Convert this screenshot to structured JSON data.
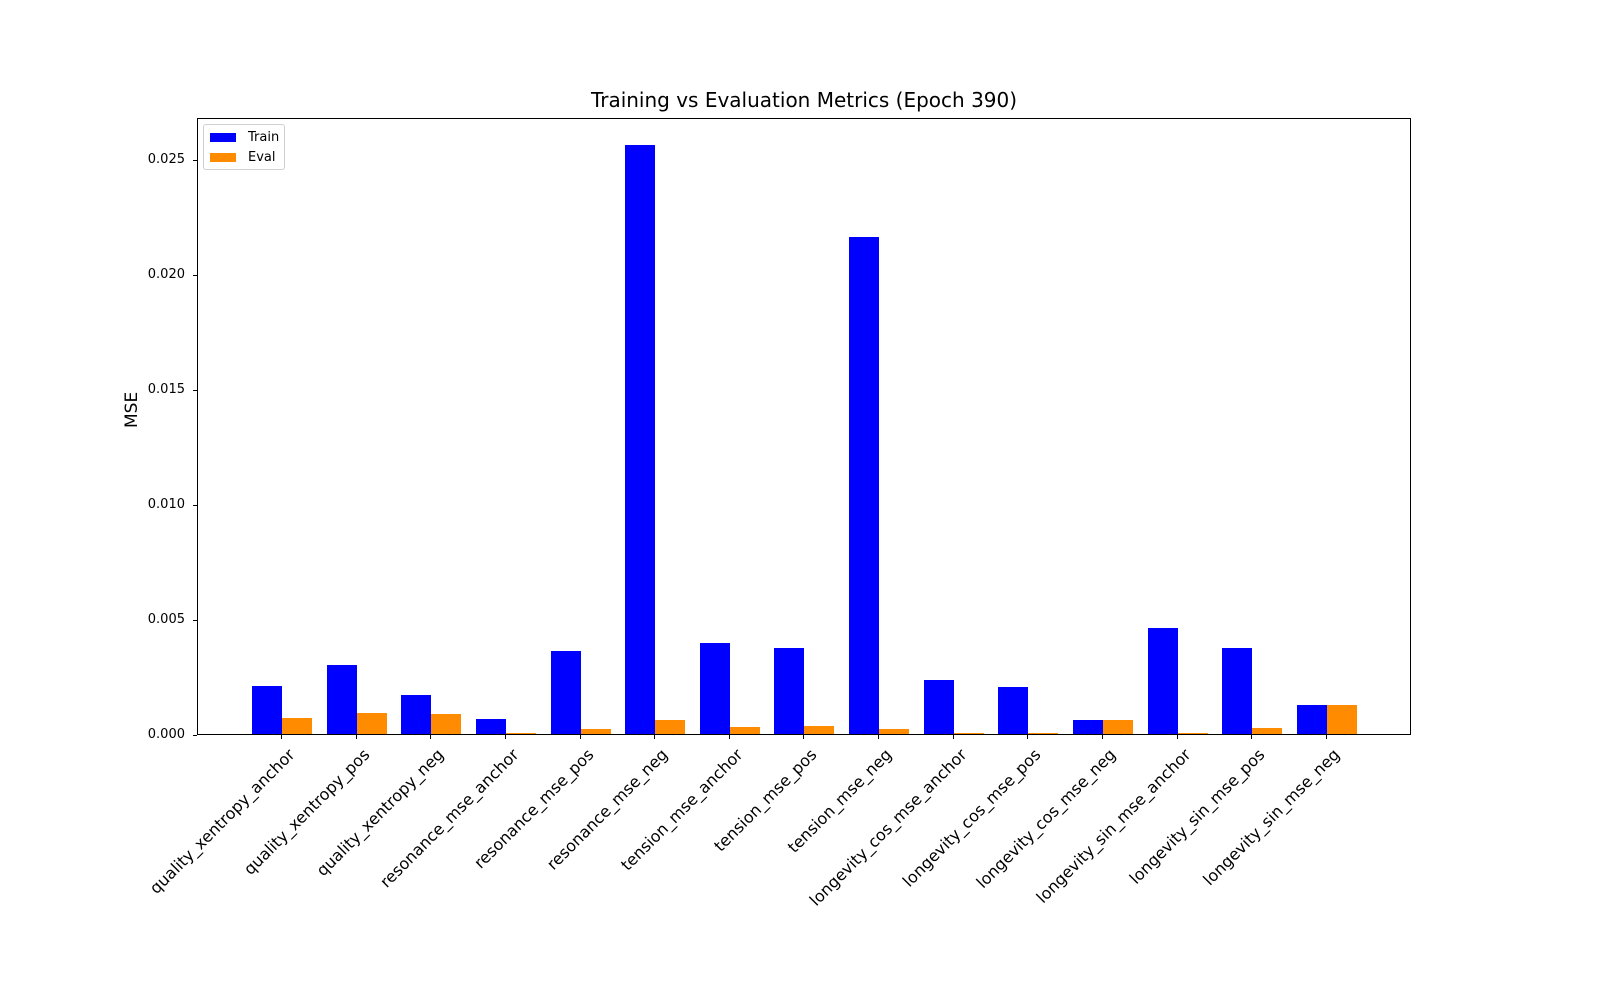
{
  "chart_data": {
    "type": "bar",
    "title": "Training vs Evaluation Metrics (Epoch 390)",
    "xlabel": "",
    "ylabel": "MSE",
    "ylim": [
      0,
      0.0268
    ],
    "yticks": [
      "0.000",
      "0.005",
      "0.010",
      "0.015",
      "0.020",
      "0.025"
    ],
    "grid": false,
    "legend_position": "upper left",
    "categories": [
      "quality_xentropy_anchor",
      "quality_xentropy_pos",
      "quality_xentropy_neg",
      "resonance_mse_anchor",
      "resonance_mse_pos",
      "resonance_mse_neg",
      "tension_mse_anchor",
      "tension_mse_pos",
      "tension_mse_neg",
      "longevity_cos_mse_anchor",
      "longevity_cos_mse_pos",
      "longevity_cos_mse_neg",
      "longevity_sin_mse_anchor",
      "longevity_sin_mse_pos",
      "longevity_sin_mse_neg"
    ],
    "series": [
      {
        "name": "Train",
        "color": "#0000ff",
        "values": [
          0.00209,
          0.00299,
          0.00171,
          0.00064,
          0.00363,
          0.0256,
          0.00396,
          0.00374,
          0.0216,
          0.00233,
          0.00203,
          0.00061,
          0.0046,
          0.00374,
          0.00126
        ]
      },
      {
        "name": "Eval",
        "color": "#ff8c00",
        "values": [
          0.00068,
          0.0009,
          0.00085,
          4e-05,
          0.00021,
          0.00059,
          0.00031,
          0.00036,
          0.00023,
          6e-05,
          6e-05,
          0.00061,
          6e-05,
          0.00027,
          0.00126
        ]
      }
    ]
  }
}
